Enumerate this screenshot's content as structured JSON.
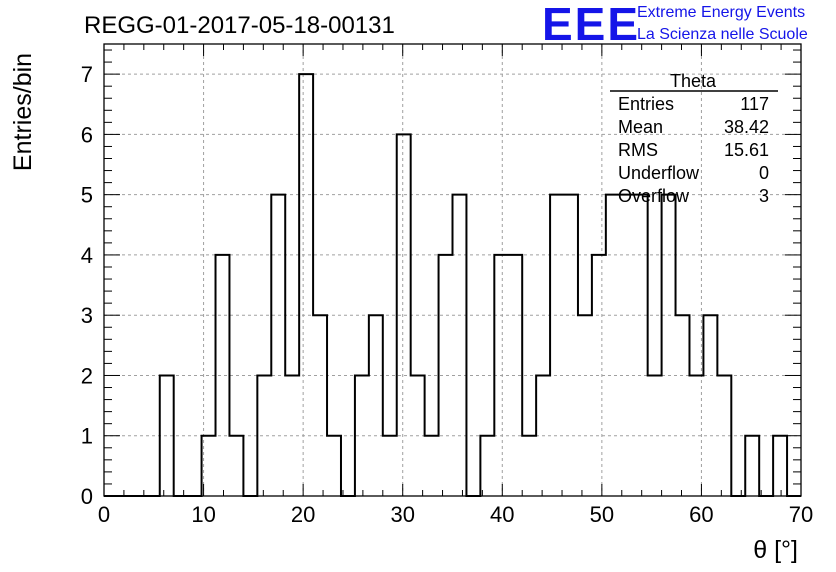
{
  "chart_data": {
    "type": "bar",
    "style": "step-histogram",
    "title": "REGG-01-2017-05-18-00131",
    "xlabel": "θ [°]",
    "ylabel": "Entries/bin",
    "xlim": [
      0,
      70
    ],
    "ylim": [
      0,
      7.5
    ],
    "bin_width": 1.4,
    "x_ticks": [
      0,
      10,
      20,
      30,
      40,
      50,
      60,
      70
    ],
    "y_ticks": [
      0,
      1,
      2,
      3,
      4,
      5,
      6,
      7
    ],
    "grid": true,
    "bin_edges": [
      0,
      1.4,
      2.8,
      4.2,
      5.6,
      7.0,
      8.4,
      9.8,
      11.2,
      12.6,
      14.0,
      15.4,
      16.8,
      18.2,
      19.6,
      21.0,
      22.4,
      23.8,
      25.2,
      26.6,
      28.0,
      29.4,
      30.8,
      32.2,
      33.6,
      35.0,
      36.4,
      37.8,
      39.2,
      40.6,
      42.0,
      43.4,
      44.8,
      46.2,
      47.6,
      49.0,
      50.4,
      51.8,
      53.2,
      54.6,
      56.0,
      57.4,
      58.8,
      60.2,
      61.6,
      63.0,
      64.4,
      65.8,
      67.2,
      68.6,
      70.0
    ],
    "values": [
      0,
      0,
      0,
      0,
      2,
      0,
      0,
      1,
      4,
      1,
      0,
      2,
      5,
      2,
      7,
      3,
      1,
      0,
      2,
      3,
      1,
      6,
      2,
      1,
      4,
      5,
      0,
      1,
      4,
      4,
      1,
      2,
      5,
      5,
      3,
      4,
      5,
      5,
      5,
      2,
      5,
      3,
      2,
      3,
      2,
      0,
      1,
      0,
      1,
      0
    ],
    "line_color": "#000000",
    "stats_box": {
      "title": "Theta",
      "rows": [
        {
          "label": "Entries",
          "value": "117"
        },
        {
          "label": "Mean",
          "value": "38.42"
        },
        {
          "label": "RMS",
          "value": "15.61"
        },
        {
          "label": "Underflow",
          "value": "0"
        },
        {
          "label": "Overflow",
          "value": "3"
        }
      ]
    }
  },
  "logo": {
    "mark": "EEE",
    "line1": "Extreme Energy Events",
    "line2": "La Scienza nelle Scuole",
    "color": "#1515e8"
  }
}
